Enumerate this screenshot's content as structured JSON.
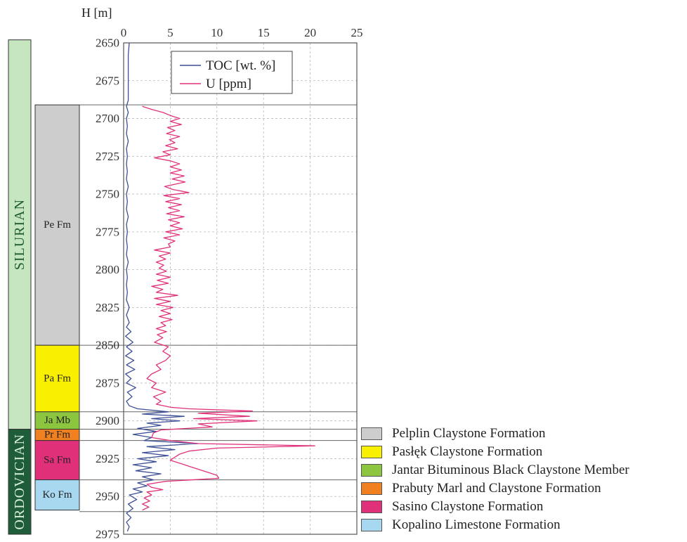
{
  "chart_data": {
    "type": "line",
    "xlabel": "",
    "ylabel": "H [m]",
    "xlim": [
      0,
      25
    ],
    "ylim": [
      2650,
      2975
    ],
    "y_inverted": true,
    "x_ticks": [
      0,
      5,
      10,
      15,
      20,
      25
    ],
    "y_ticks": [
      2650,
      2675,
      2700,
      2725,
      2750,
      2775,
      2800,
      2825,
      2850,
      2875,
      2900,
      2925,
      2950,
      2975
    ],
    "grid": true,
    "legend_position": "top-center",
    "series": [
      {
        "name": "TOC [wt. %]",
        "color": "#3d4f96",
        "points": [
          [
            0.6,
            2650
          ],
          [
            0.5,
            2658
          ],
          [
            0.5,
            2668
          ],
          [
            0.5,
            2678
          ],
          [
            0.5,
            2688
          ],
          [
            0.3,
            2692
          ],
          [
            0.5,
            2696
          ],
          [
            0.3,
            2700
          ],
          [
            0.4,
            2705
          ],
          [
            0.3,
            2710
          ],
          [
            0.5,
            2715
          ],
          [
            0.3,
            2720
          ],
          [
            0.4,
            2725
          ],
          [
            0.3,
            2730
          ],
          [
            0.4,
            2735
          ],
          [
            0.3,
            2740
          ],
          [
            0.5,
            2745
          ],
          [
            0.3,
            2750
          ],
          [
            0.4,
            2755
          ],
          [
            0.3,
            2760
          ],
          [
            0.5,
            2765
          ],
          [
            0.3,
            2770
          ],
          [
            0.4,
            2775
          ],
          [
            0.3,
            2780
          ],
          [
            0.4,
            2785
          ],
          [
            0.3,
            2790
          ],
          [
            0.5,
            2795
          ],
          [
            0.3,
            2800
          ],
          [
            0.4,
            2805
          ],
          [
            0.3,
            2810
          ],
          [
            0.4,
            2815
          ],
          [
            0.3,
            2820
          ],
          [
            0.6,
            2825
          ],
          [
            0.3,
            2830
          ],
          [
            0.6,
            2835
          ],
          [
            0.3,
            2838
          ],
          [
            0.8,
            2841
          ],
          [
            0.2,
            2844
          ],
          [
            1.0,
            2848
          ],
          [
            0.3,
            2851
          ],
          [
            0.9,
            2854
          ],
          [
            0.2,
            2857
          ],
          [
            1.1,
            2860
          ],
          [
            0.3,
            2863
          ],
          [
            1.2,
            2866
          ],
          [
            0.2,
            2869
          ],
          [
            0.8,
            2872
          ],
          [
            0.3,
            2875
          ],
          [
            1.3,
            2878
          ],
          [
            0.4,
            2881
          ],
          [
            0.9,
            2884
          ],
          [
            0.3,
            2887
          ],
          [
            0.6,
            2890
          ],
          [
            1.5,
            2892
          ],
          [
            4.8,
            2894
          ],
          [
            2.0,
            2895.5
          ],
          [
            6.5,
            2897
          ],
          [
            3.0,
            2898.5
          ],
          [
            6.0,
            2900
          ],
          [
            2.5,
            2901.5
          ],
          [
            4.0,
            2903
          ],
          [
            1.5,
            2905
          ],
          [
            3.5,
            2907
          ],
          [
            1.0,
            2909
          ],
          [
            3.0,
            2911
          ],
          [
            2.2,
            2913
          ],
          [
            8.0,
            2915
          ],
          [
            2.5,
            2917
          ],
          [
            5.5,
            2919
          ],
          [
            2.0,
            2921
          ],
          [
            4.8,
            2923
          ],
          [
            1.5,
            2925
          ],
          [
            3.5,
            2927
          ],
          [
            1.0,
            2929
          ],
          [
            3.0,
            2931
          ],
          [
            1.3,
            2933
          ],
          [
            4.0,
            2935
          ],
          [
            2.0,
            2937
          ],
          [
            3.2,
            2939
          ],
          [
            1.5,
            2941
          ],
          [
            2.5,
            2943
          ],
          [
            1.0,
            2945
          ],
          [
            2.0,
            2947
          ],
          [
            0.6,
            2949
          ],
          [
            1.4,
            2952
          ],
          [
            0.5,
            2955
          ],
          [
            1.0,
            2958
          ],
          [
            0.3,
            2961
          ],
          [
            0.8,
            2964
          ],
          [
            0.3,
            2967
          ],
          [
            0.6,
            2970
          ],
          [
            0.4,
            2973
          ]
        ]
      },
      {
        "name": "U [ppm]",
        "color": "#e0327a",
        "points": [
          [
            2.0,
            2692
          ],
          [
            3.0,
            2694
          ],
          [
            4.2,
            2696
          ],
          [
            5.0,
            2698
          ],
          [
            6.0,
            2700
          ],
          [
            5.0,
            2702
          ],
          [
            6.2,
            2704
          ],
          [
            4.7,
            2706
          ],
          [
            5.5,
            2708
          ],
          [
            4.6,
            2710
          ],
          [
            6.0,
            2712
          ],
          [
            4.9,
            2714
          ],
          [
            5.5,
            2716
          ],
          [
            4.5,
            2718
          ],
          [
            5.8,
            2720
          ],
          [
            4.2,
            2722
          ],
          [
            5.0,
            2724
          ],
          [
            3.3,
            2726
          ],
          [
            5.0,
            2728
          ],
          [
            6.0,
            2730
          ],
          [
            5.0,
            2732
          ],
          [
            6.2,
            2734
          ],
          [
            5.0,
            2736
          ],
          [
            6.5,
            2738
          ],
          [
            5.2,
            2740
          ],
          [
            6.6,
            2742
          ],
          [
            4.4,
            2745
          ],
          [
            5.3,
            2747
          ],
          [
            7.0,
            2749
          ],
          [
            4.3,
            2751
          ],
          [
            6.0,
            2753
          ],
          [
            4.5,
            2755
          ],
          [
            6.2,
            2757
          ],
          [
            4.8,
            2759
          ],
          [
            6.0,
            2761
          ],
          [
            4.6,
            2763
          ],
          [
            6.5,
            2765
          ],
          [
            4.8,
            2767
          ],
          [
            6.0,
            2769
          ],
          [
            5.0,
            2771
          ],
          [
            6.3,
            2773
          ],
          [
            4.5,
            2775
          ],
          [
            6.0,
            2777
          ],
          [
            4.3,
            2779
          ],
          [
            5.5,
            2781
          ],
          [
            4.8,
            2783
          ],
          [
            5.0,
            2785
          ],
          [
            3.3,
            2787
          ],
          [
            5.0,
            2789
          ],
          [
            3.8,
            2791
          ],
          [
            4.5,
            2793
          ],
          [
            3.5,
            2795
          ],
          [
            4.3,
            2797
          ],
          [
            3.8,
            2799
          ],
          [
            4.6,
            2801
          ],
          [
            3.5,
            2803
          ],
          [
            5.0,
            2805
          ],
          [
            3.6,
            2807
          ],
          [
            4.8,
            2809
          ],
          [
            3.0,
            2811
          ],
          [
            4.2,
            2813
          ],
          [
            3.5,
            2815
          ],
          [
            5.8,
            2817
          ],
          [
            3.3,
            2819
          ],
          [
            5.0,
            2821
          ],
          [
            3.5,
            2823
          ],
          [
            5.3,
            2825
          ],
          [
            4.0,
            2827
          ],
          [
            5.0,
            2829
          ],
          [
            3.8,
            2831
          ],
          [
            5.2,
            2833
          ],
          [
            4.0,
            2835
          ],
          [
            4.5,
            2837
          ],
          [
            3.5,
            2839
          ],
          [
            4.6,
            2841
          ],
          [
            3.6,
            2843
          ],
          [
            4.2,
            2845
          ],
          [
            3.3,
            2848
          ],
          [
            4.8,
            2851
          ],
          [
            4.2,
            2854
          ],
          [
            5.0,
            2857
          ],
          [
            4.5,
            2860
          ],
          [
            3.5,
            2863
          ],
          [
            4.0,
            2866
          ],
          [
            3.0,
            2869
          ],
          [
            2.5,
            2872
          ],
          [
            3.5,
            2875
          ],
          [
            3.0,
            2878
          ],
          [
            4.5,
            2881
          ],
          [
            3.2,
            2884
          ],
          [
            4.0,
            2887
          ],
          [
            3.5,
            2889
          ],
          [
            5.0,
            2891
          ],
          [
            7.0,
            2892
          ],
          [
            13.8,
            2893.5
          ],
          [
            8.0,
            2895
          ],
          [
            13.5,
            2897
          ],
          [
            7.5,
            2898.5
          ],
          [
            14.3,
            2900
          ],
          [
            8.0,
            2902
          ],
          [
            9.5,
            2904
          ],
          [
            4.0,
            2906
          ],
          [
            3.2,
            2908
          ],
          [
            3.0,
            2911
          ],
          [
            5.0,
            2913
          ],
          [
            8.0,
            2915
          ],
          [
            20.5,
            2916.5
          ],
          [
            10.0,
            2918
          ],
          [
            7.0,
            2920
          ],
          [
            6.0,
            2922
          ],
          [
            5.5,
            2924
          ],
          [
            5.0,
            2926
          ],
          [
            6.0,
            2928
          ],
          [
            7.0,
            2930
          ],
          [
            8.0,
            2932
          ],
          [
            9.0,
            2934
          ],
          [
            10.0,
            2936
          ],
          [
            10.2,
            2938
          ],
          [
            4.5,
            2940
          ],
          [
            2.5,
            2942
          ],
          [
            3.0,
            2944
          ],
          [
            4.2,
            2945.5
          ],
          [
            2.5,
            2947
          ],
          [
            3.0,
            2949
          ],
          [
            2.2,
            2951
          ],
          [
            2.8,
            2953
          ],
          [
            2.0,
            2955
          ],
          [
            2.7,
            2957
          ],
          [
            2.0,
            2959
          ]
        ]
      }
    ],
    "periods": [
      {
        "label": "SILURIAN",
        "top": 2648,
        "base": 2905.5,
        "color": "#c6e6c0",
        "text_color": "#1f5c2e"
      },
      {
        "label": "ORDOVICIAN",
        "top": 2905.5,
        "base": 2975,
        "color": "#1f5c3a",
        "text_color": "#d8f0d8"
      }
    ],
    "formations": [
      {
        "label": "Pe Fm",
        "top": 2691,
        "base": 2850,
        "color": "#cdcdcd"
      },
      {
        "label": "Pa Fm",
        "top": 2850,
        "base": 2894,
        "color": "#f8f000"
      },
      {
        "label": "Ja Mb",
        "top": 2894,
        "base": 2905.5,
        "color": "#8cc63f"
      },
      {
        "label": "Pr Fm",
        "top": 2905.5,
        "base": 2913,
        "color": "#f08020"
      },
      {
        "label": "Sa Fm",
        "top": 2913,
        "base": 2939,
        "color": "#e0307a"
      },
      {
        "label": "Ko Fm",
        "top": 2939,
        "base": 2959,
        "color": "#a8d8f0"
      }
    ],
    "boundaries": [
      2691,
      2850,
      2894,
      2905.5,
      2913,
      2939,
      2960
    ]
  },
  "strat_legend": [
    {
      "text": "Pelplin Claystone Formation",
      "color": "#cdcdcd"
    },
    {
      "text": "Pasłęk Claystone Formation",
      "color": "#f8f000"
    },
    {
      "text": "Jantar Bituminous Black Claystone Member",
      "color": "#8cc63f"
    },
    {
      "text": "Prabuty Marl and Claystone Formation",
      "color": "#f08020"
    },
    {
      "text": "Sasino Claystone Formation",
      "color": "#e0307a"
    },
    {
      "text": "Kopalino Limestone Formation",
      "color": "#a8d8f0"
    }
  ]
}
